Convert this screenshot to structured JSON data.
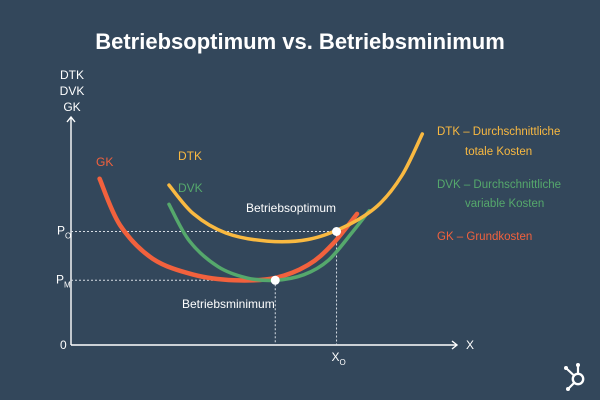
{
  "title": "Betriebsoptimum vs. Betriebsminimum",
  "chart_data": {
    "type": "line",
    "ylabel_lines": [
      "DTK",
      "DVK",
      "GK"
    ],
    "xlabel": "X",
    "origin_label": "0",
    "y_markers": [
      {
        "letter": "P",
        "subscript": "O",
        "ref": "optimum"
      },
      {
        "letter": "P",
        "subscript": "M",
        "ref": "minimum"
      }
    ],
    "x_marker": {
      "letter": "X",
      "subscript": "O"
    },
    "series": [
      {
        "name": "GK",
        "color": "#f2613d",
        "points": [
          [
            0.7,
            10.4
          ],
          [
            1.2,
            7.5
          ],
          [
            2.0,
            5.4
          ],
          [
            3.0,
            4.4
          ],
          [
            4.0,
            4.05
          ],
          [
            5.0,
            4.2
          ],
          [
            5.8,
            5.0
          ],
          [
            6.4,
            6.3
          ],
          [
            7.0,
            8.2
          ]
        ]
      },
      {
        "name": "DVK",
        "color": "#55a86c",
        "points": [
          [
            2.4,
            8.8
          ],
          [
            2.9,
            6.5
          ],
          [
            3.6,
            4.9
          ],
          [
            4.3,
            4.2
          ],
          [
            5.0,
            4.05
          ],
          [
            5.7,
            4.4
          ],
          [
            6.3,
            5.3
          ],
          [
            6.9,
            7.1
          ],
          [
            7.3,
            8.4
          ]
        ]
      },
      {
        "name": "DTK",
        "color": "#f9b941",
        "points": [
          [
            2.4,
            10.0
          ],
          [
            3.0,
            8.2
          ],
          [
            3.8,
            7.0
          ],
          [
            4.8,
            6.5
          ],
          [
            5.8,
            6.6
          ],
          [
            6.7,
            7.4
          ],
          [
            7.5,
            8.7
          ],
          [
            8.1,
            10.6
          ],
          [
            8.6,
            13.2
          ]
        ]
      }
    ],
    "curve_labels": [
      "GK",
      "DVK",
      "DTK"
    ],
    "points": [
      {
        "name": "optimum",
        "x": 6.5,
        "y": 7.1,
        "label": "Betriebsoptimum"
      },
      {
        "name": "minimum",
        "x": 5.0,
        "y": 4.05,
        "label": "Betriebsminimum"
      }
    ],
    "xlim": [
      0,
      9.4
    ],
    "ylim": [
      0,
      14.2
    ],
    "legend": {
      "placement": "right",
      "entries": [
        {
          "lines": [
            "DTK – Durchschnittliche",
            "totale Kosten"
          ],
          "color": "#f9b941"
        },
        {
          "lines": [
            "DVK – Durchschnittliche",
            "variable Kosten"
          ],
          "color": "#55a86c"
        },
        {
          "lines": [
            "GK – Grundkosten"
          ],
          "color": "#f2613d"
        }
      ]
    },
    "grid": false
  },
  "logo": {
    "name": "hubspot-logo-icon",
    "color": "#ffffff"
  }
}
